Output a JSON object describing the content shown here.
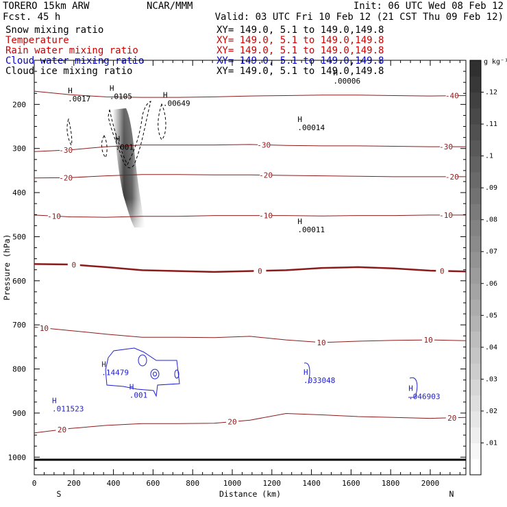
{
  "header": {
    "model": "TORERO  15km ARW",
    "forecast": "Fcst.   45 h",
    "center": "NCAR/MMM",
    "init": "Init: 06 UTC Wed 08 Feb 12",
    "valid": "Valid: 03 UTC Fri 10 Feb 12 (21 CST Thu 09 Feb 12)"
  },
  "legend": [
    {
      "label": "Snow mixing ratio",
      "xy": "XY= 149.0,  5.1 to 149.0,149.8",
      "color": "#000000"
    },
    {
      "label": "Temperature",
      "xy": "XY= 149.0,  5.1 to 149.0,149.8",
      "color": "#cc0000"
    },
    {
      "label": "Rain water mixing ratio",
      "xy": "XY= 149.0,  5.1 to 149.0,149.8",
      "color": "#cc0000"
    },
    {
      "label": "Cloud water mixing ratio",
      "xy": "XY= 149.0,  5.1 to 149.0,149.8",
      "color": "#0000cc"
    },
    {
      "label": "Cloud ice mixing ratio",
      "xy": "XY= 149.0,  5.1 to 149.0,149.8",
      "color": "#000000"
    }
  ],
  "colorbar": {
    "unit": "g kg⁻¹",
    "labels": [
      ".01",
      ".02",
      ".03",
      ".04",
      ".05",
      ".06",
      ".07",
      ".08",
      ".09",
      ".1",
      ".11",
      ".12"
    ]
  },
  "chart_data": {
    "type": "heatmap",
    "xlabel": "Distance (km)",
    "ylabel": "Pressure (hPa)",
    "x_ticks": [
      0,
      200,
      400,
      600,
      800,
      1000,
      1200,
      1400,
      1600,
      1800,
      2000
    ],
    "y_ticks": [
      200,
      300,
      400,
      500,
      600,
      700,
      800,
      900,
      1000
    ],
    "xlim": [
      0,
      2180
    ],
    "ylim": [
      1040,
      100
    ],
    "endpoints": [
      "S",
      "N"
    ],
    "temperature_isotherms_C": [
      {
        "label": "-40",
        "p": [
          170,
          178,
          183,
          184,
          184,
          183,
          181,
          180,
          179,
          179,
          180,
          181,
          180
        ],
        "labels_at": [
          [
            2110,
            "-40"
          ]
        ]
      },
      {
        "label": "-30",
        "p": [
          307,
          303,
          296,
          292,
          292,
          292,
          291,
          293,
          294,
          294,
          295,
          296,
          296
        ],
        "labels_at": [
          [
            160,
            "-30"
          ],
          [
            1160,
            "-30"
          ],
          [
            2080,
            "-30"
          ]
        ]
      },
      {
        "label": "-20",
        "p": [
          367,
          366,
          362,
          359,
          359,
          360,
          360,
          361,
          362,
          363,
          364,
          364,
          364
        ],
        "labels_at": [
          [
            160,
            "-20"
          ],
          [
            1170,
            "-20"
          ],
          [
            2110,
            "-20"
          ]
        ]
      },
      {
        "label": "-10",
        "p": [
          451,
          455,
          456,
          454,
          454,
          452,
          452,
          452,
          453,
          452,
          452,
          451,
          451
        ],
        "labels_at": [
          [
            100,
            "-10"
          ],
          [
            1170,
            "-10"
          ],
          [
            2080,
            "-10"
          ]
        ]
      },
      {
        "label": "0",
        "p": [
          562,
          563,
          569,
          576,
          578,
          580,
          578,
          576,
          571,
          569,
          572,
          577,
          579
        ],
        "labels_at": [
          [
            200,
            "0"
          ],
          [
            1140,
            "0"
          ],
          [
            2060,
            "0"
          ]
        ]
      },
      {
        "label": "10",
        "p": [
          705,
          713,
          721,
          728,
          728,
          729,
          726,
          734,
          740,
          737,
          735,
          734,
          736
        ],
        "labels_at": [
          [
            50,
            "10"
          ],
          [
            1450,
            "10"
          ],
          [
            1990,
            "10"
          ]
        ]
      },
      {
        "label": "20",
        "p": [
          945,
          935,
          928,
          924,
          924,
          923,
          916,
          901,
          904,
          908,
          910,
          912,
          910
        ],
        "labels_at": [
          [
            140,
            "20"
          ],
          [
            1000,
            "20"
          ],
          [
            2110,
            "20"
          ]
        ]
      }
    ],
    "snow_max_labels": [
      {
        "x": 1510,
        "p": 150,
        "value": ".00006"
      },
      {
        "x": 1330,
        "p": 255,
        "value": ".00014"
      },
      {
        "x": 1330,
        "p": 487,
        "value": ".00011"
      }
    ],
    "rain_max_labels": [
      {
        "x": 170,
        "p": 190,
        "value": ".0017"
      },
      {
        "x": 380,
        "p": 185,
        "value": ".0105"
      },
      {
        "x": 410,
        "p": 300,
        "value": ".001"
      },
      {
        "x": 650,
        "p": 200,
        "value": ".00649"
      }
    ],
    "cloud_water_labels": [
      {
        "x": 90,
        "p": 893,
        "value": ".011523"
      },
      {
        "x": 340,
        "p": 811,
        "value": ".14479"
      },
      {
        "x": 480,
        "p": 862,
        "value": ".001"
      },
      {
        "x": 1360,
        "p": 829,
        "value": ".033048"
      },
      {
        "x": 1890,
        "p": 865,
        "value": ".046903"
      }
    ]
  }
}
